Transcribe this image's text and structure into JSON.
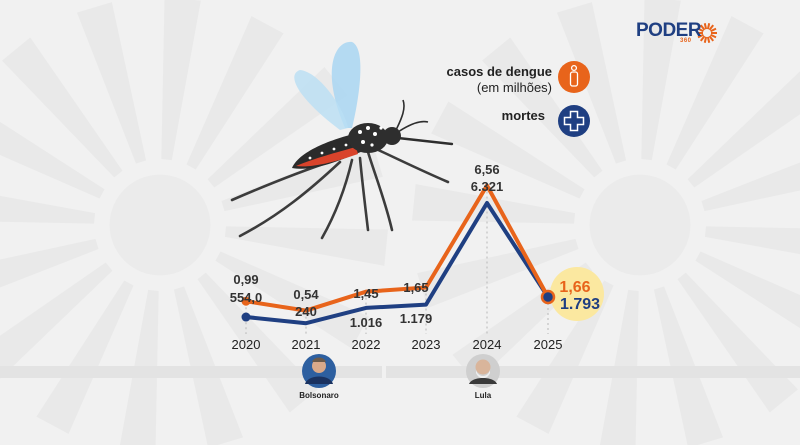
{
  "brand": {
    "name": "PODER",
    "sub": "360",
    "colors": {
      "orange": "#e8641b",
      "navy": "#1f3f82",
      "highlight": "#fbe8a0"
    }
  },
  "legend": {
    "cases_line1": "casos de dengue",
    "cases_line2": "(em milhões)",
    "deaths": "mortes",
    "cases_icon": "person-icon",
    "deaths_icon": "cross-icon"
  },
  "people": [
    {
      "name": "Bolsonaro",
      "icon": "bolsonaro-avatar"
    },
    {
      "name": "Lula",
      "icon": "lula-avatar"
    }
  ],
  "chart_data": {
    "type": "line",
    "categories": [
      "2020",
      "2021",
      "2022",
      "2023",
      "2024",
      "2025"
    ],
    "series": [
      {
        "name": "casos de dengue (em milhões)",
        "color": "#e8641b",
        "values": [
          0.99,
          0.54,
          1.45,
          1.65,
          6.56,
          1.66
        ],
        "labels": [
          "0,99",
          "0,54",
          "1,45",
          "1,65",
          "6,56",
          "1,66"
        ]
      },
      {
        "name": "mortes",
        "color": "#1f3f82",
        "values": [
          554.0,
          240,
          1016,
          1179,
          6321,
          1793
        ],
        "labels": [
          "554,0",
          "240",
          "1.016",
          "1.179",
          "6.321",
          "1.793"
        ]
      }
    ],
    "title": "",
    "xlabel": "",
    "ylabel": "",
    "grid": "vertical dotted"
  }
}
